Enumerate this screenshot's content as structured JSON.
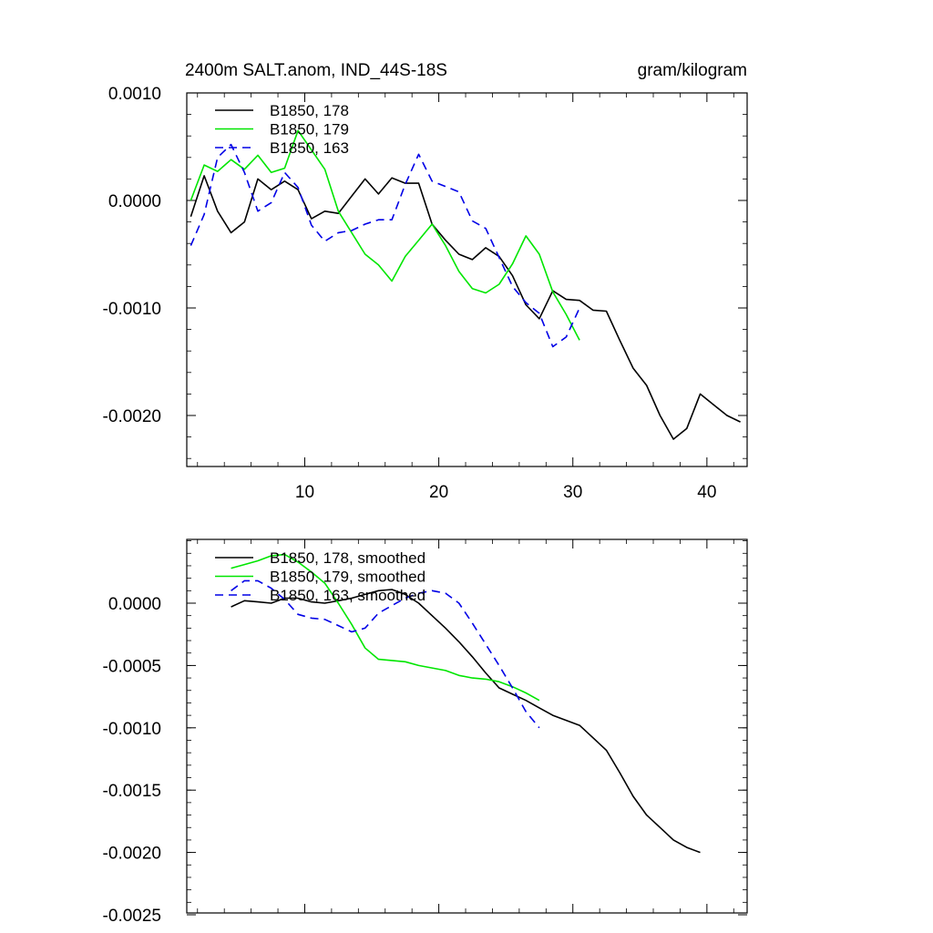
{
  "chart_data": [
    {
      "type": "line",
      "title": "2400m SALT.anom, IND_44S-18S",
      "units": "gram/kilogram",
      "xlim": [
        1.2,
        43
      ],
      "ylim": [
        -0.0025,
        0.001
      ],
      "xticks": [
        10,
        20,
        30,
        40
      ],
      "xtick_labels": [
        "10",
        "20",
        "30",
        "40"
      ],
      "yticks": [
        0.001,
        0.0,
        -0.001,
        -0.002
      ],
      "ytick_labels": [
        "0.0010",
        "0.0000",
        "-0.0010",
        "-0.0020"
      ],
      "legend_position": "top-left",
      "series": [
        {
          "name": "B1850, 178",
          "color": "#000000",
          "dash": "solid",
          "x": [
            1.5,
            2.5,
            3.5,
            4.5,
            5.5,
            6.5,
            7.5,
            8.5,
            9.5,
            10.5,
            11.5,
            12.5,
            13.5,
            14.5,
            15.5,
            16.5,
            17.5,
            18.5,
            19.5,
            20.5,
            21.5,
            22.5,
            23.5,
            24.5,
            25.5,
            26.5,
            27.5,
            28.5,
            29.5,
            30.5,
            31.5,
            32.5,
            33.5,
            34.5,
            35.5,
            36.5,
            37.5,
            38.5,
            39.5,
            40.5,
            41.5,
            42.5
          ],
          "y": [
            -0.00015,
            0.00023,
            -0.0001,
            -0.0003,
            -0.0002,
            0.0002,
            0.0001,
            0.00018,
            0.0001,
            -0.00017,
            -0.0001,
            -0.00012,
            4e-05,
            0.0002,
            6e-05,
            0.00021,
            0.00016,
            0.00016,
            -0.00022,
            -0.00037,
            -0.0005,
            -0.00055,
            -0.00044,
            -0.00052,
            -0.0007,
            -0.00097,
            -0.0011,
            -0.00084,
            -0.00092,
            -0.00093,
            -0.00102,
            -0.00103,
            -0.0013,
            -0.00156,
            -0.00172,
            -0.002,
            -0.00222,
            -0.00212,
            -0.0018,
            -0.0019,
            -0.002,
            -0.00206
          ]
        },
        {
          "name": "B1850, 179",
          "color": "#00e600",
          "dash": "solid",
          "x": [
            1.5,
            2.5,
            3.5,
            4.5,
            5.5,
            6.5,
            7.5,
            8.5,
            9.5,
            10.5,
            11.5,
            12.5,
            13.5,
            14.5,
            15.5,
            16.5,
            17.5,
            18.5,
            19.5,
            20.5,
            21.5,
            22.5,
            23.5,
            24.5,
            25.5,
            26.5,
            27.5,
            28.5,
            29.5,
            30.5
          ],
          "y": [
            0.0,
            0.00033,
            0.00027,
            0.00038,
            0.00029,
            0.00042,
            0.00026,
            0.0003,
            0.00065,
            0.00047,
            0.00029,
            -0.0001,
            -0.0003,
            -0.0005,
            -0.0006,
            -0.00075,
            -0.00052,
            -0.00037,
            -0.00022,
            -0.00042,
            -0.00066,
            -0.00082,
            -0.00086,
            -0.00078,
            -0.00059,
            -0.00033,
            -0.0005,
            -0.00085,
            -0.00106,
            -0.0013
          ]
        },
        {
          "name": "B1850, 163",
          "color": "#0000e6",
          "dash": "dashed",
          "x": [
            1.5,
            2.5,
            3.5,
            4.5,
            5.5,
            6.5,
            7.5,
            8.5,
            9.5,
            10.5,
            11.5,
            12.5,
            13.5,
            14.5,
            15.5,
            16.5,
            17.5,
            18.5,
            19.5,
            20.5,
            21.5,
            22.5,
            23.5,
            24.5,
            25.5,
            26.5,
            27.5,
            28.5,
            29.5,
            30.5
          ],
          "y": [
            -0.00042,
            -0.00013,
            0.0004,
            0.00052,
            0.00026,
            -0.0001,
            -2e-05,
            0.00026,
            0.00012,
            -0.00023,
            -0.00038,
            -0.0003,
            -0.00028,
            -0.00022,
            -0.00018,
            -0.00018,
            0.00015,
            0.00043,
            0.00018,
            0.00013,
            8e-05,
            -0.00019,
            -0.00026,
            -0.00053,
            -0.0008,
            -0.00095,
            -0.00105,
            -0.00136,
            -0.00127,
            -0.001
          ]
        }
      ]
    },
    {
      "type": "line",
      "title": "",
      "xlim": [
        1.2,
        43
      ],
      "ylim": [
        -0.0025,
        0.00052
      ],
      "xticks": [
        10,
        20,
        30,
        40
      ],
      "xtick_labels": [],
      "yticks": [
        0.0,
        -0.0005,
        -0.001,
        -0.0015,
        -0.002,
        -0.0025
      ],
      "ytick_labels": [
        "0.0000",
        "-0.0005",
        "-0.0010",
        "-0.0015",
        "-0.0020",
        "-0.0025"
      ],
      "legend_position": "top-left",
      "series": [
        {
          "name": "B1850, 178, smoothed",
          "color": "#000000",
          "dash": "solid",
          "x": [
            4.5,
            5.5,
            6.5,
            7.5,
            8.5,
            9.5,
            10.5,
            11.5,
            12.5,
            13.5,
            14.5,
            15.5,
            16.5,
            17.5,
            18.5,
            19.5,
            20.5,
            21.5,
            22.5,
            23.5,
            24.5,
            25.5,
            26.5,
            27.5,
            28.5,
            29.5,
            30.5,
            31.5,
            32.5,
            33.5,
            34.5,
            35.5,
            36.5,
            37.5,
            38.5,
            39.5
          ],
          "y": [
            -3e-05,
            2e-05,
            1e-05,
            0.0,
            4e-05,
            4e-05,
            1e-05,
            0.0,
            2e-05,
            4e-05,
            7e-05,
            0.0001,
            0.00011,
            7e-05,
            0.0,
            -0.0001,
            -0.0002,
            -0.00031,
            -0.00043,
            -0.00056,
            -0.00068,
            -0.00073,
            -0.00078,
            -0.00084,
            -0.0009,
            -0.00094,
            -0.00098,
            -0.00108,
            -0.00118,
            -0.00136,
            -0.00155,
            -0.0017,
            -0.0018,
            -0.0019,
            -0.00196,
            -0.002
          ]
        },
        {
          "name": "B1850, 179, smoothed",
          "color": "#00e600",
          "dash": "solid",
          "x": [
            4.5,
            5.5,
            6.5,
            7.5,
            8.5,
            9.5,
            10.5,
            11.5,
            12.5,
            13.5,
            14.5,
            15.5,
            16.5,
            17.5,
            18.5,
            19.5,
            20.5,
            21.5,
            22.5,
            23.5,
            24.5,
            25.5,
            26.5,
            27.5
          ],
          "y": [
            0.00028,
            0.00031,
            0.00034,
            0.00038,
            0.00039,
            0.00033,
            0.00025,
            0.00016,
            0.0,
            -0.00017,
            -0.00036,
            -0.00045,
            -0.00046,
            -0.00047,
            -0.0005,
            -0.00052,
            -0.00054,
            -0.00058,
            -0.0006,
            -0.00061,
            -0.00063,
            -0.00067,
            -0.00072,
            -0.00078
          ]
        },
        {
          "name": "B1850, 163, smoothed",
          "color": "#0000e6",
          "dash": "dashed",
          "x": [
            4.5,
            5.5,
            6.5,
            7.5,
            8.5,
            9.5,
            10.5,
            11.5,
            12.5,
            13.5,
            14.5,
            15.5,
            16.5,
            17.5,
            18.5,
            19.5,
            20.5,
            21.5,
            22.5,
            23.5,
            24.5,
            25.5,
            26.5,
            27.5
          ],
          "y": [
            0.0001,
            0.00018,
            0.00018,
            0.00012,
            3e-05,
            -9e-05,
            -0.00012,
            -0.00013,
            -0.00018,
            -0.00023,
            -0.0002,
            -8e-05,
            -2e-05,
            4e-05,
            8e-05,
            0.0001,
            8e-05,
            0.0,
            -0.00016,
            -0.00033,
            -0.0005,
            -0.00068,
            -0.00087,
            -0.001
          ]
        }
      ]
    }
  ]
}
